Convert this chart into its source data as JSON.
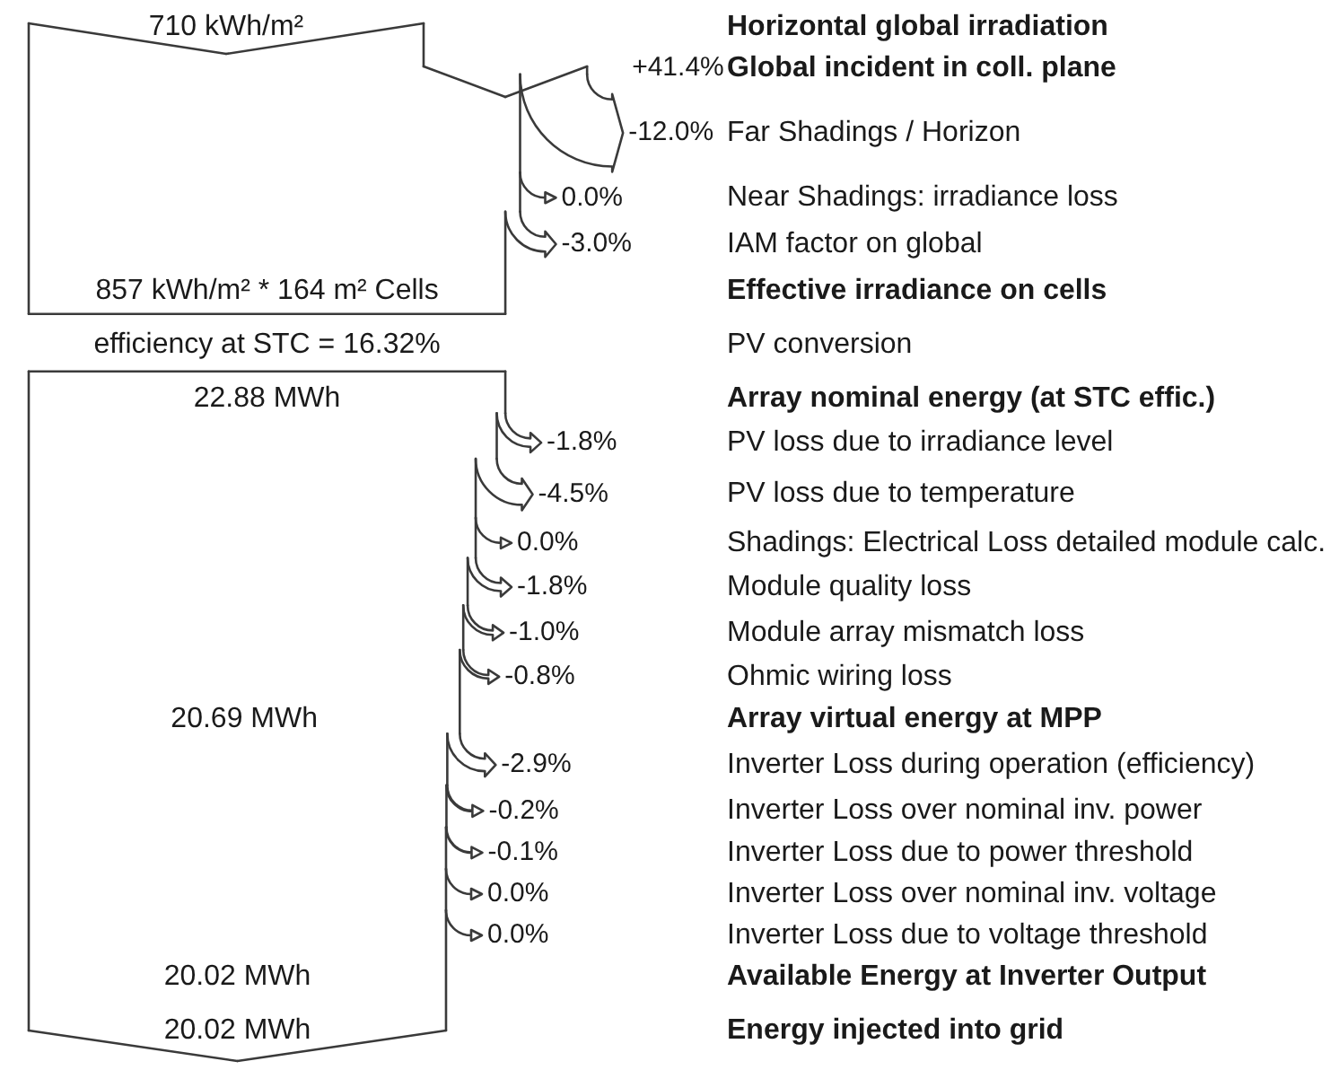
{
  "chart_data": {
    "type": "other",
    "categories": [
      "Horizontal global irradiation",
      "Global incident in coll. plane",
      "Far Shadings / Horizon",
      "Near Shadings: irradiance loss",
      "IAM factor on global",
      "Effective irradiance on cells",
      "PV conversion",
      "Array nominal energy (at STC effic.)",
      "PV loss due to irradiance level",
      "PV loss due to temperature",
      "Shadings: Electrical Loss detailed module calc.",
      "Module quality loss",
      "Module array mismatch loss",
      "Ohmic wiring loss",
      "Array virtual energy at MPP",
      "Inverter Loss during operation (efficiency)",
      "Inverter Loss over nominal inv. power",
      "Inverter Loss due to power threshold",
      "Inverter Loss over nominal inv. voltage",
      "Inverter Loss due to voltage threshold",
      "Available Energy at Inverter Output",
      "Energy injected into grid"
    ],
    "values": [
      null,
      41.4,
      -12.0,
      0.0,
      -3.0,
      null,
      null,
      null,
      -1.8,
      -4.5,
      0.0,
      -1.8,
      -1.0,
      -0.8,
      null,
      -2.9,
      -0.2,
      -0.1,
      0.0,
      0.0,
      null,
      null
    ],
    "value_labels": [
      null,
      "+41.4%",
      "-12.0%",
      "0.0%",
      "-3.0%",
      null,
      null,
      null,
      "-1.8%",
      "-4.5%",
      "0.0%",
      "-1.8%",
      "-1.0%",
      "-0.8%",
      null,
      "-2.9%",
      "-0.2%",
      "-0.1%",
      "0.0%",
      "0.0%",
      null,
      null
    ],
    "annotations": [
      "710 kWh/m²",
      "857 kWh/m² * 164 m² Cells",
      "efficiency at STC = 16.32%",
      "22.88 MWh",
      "20.69 MWh",
      "20.02 MWh",
      "20.02 MWh"
    ]
  }
}
